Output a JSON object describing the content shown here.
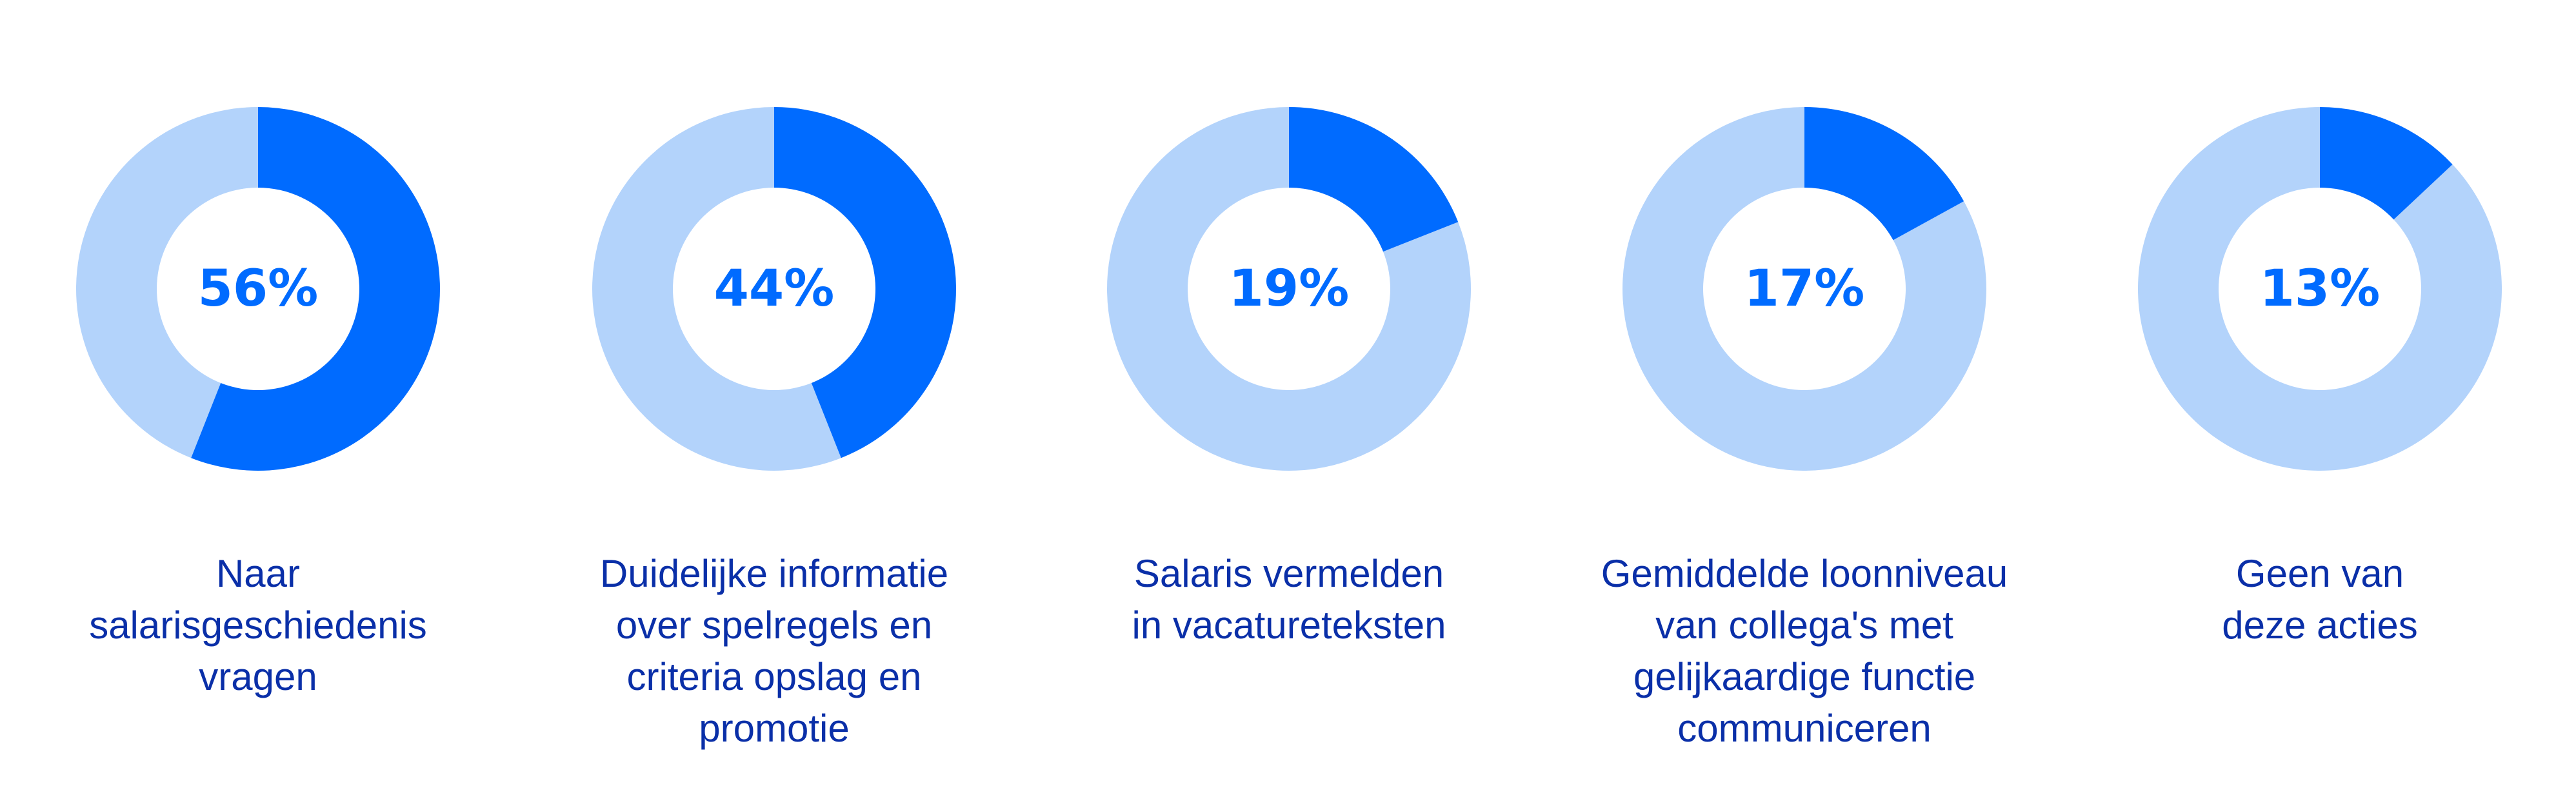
{
  "colors": {
    "primary": "#006bff",
    "secondary": "#b3d3fb",
    "text": "#0a2fa8"
  },
  "chart_data": [
    {
      "type": "pie",
      "title": "",
      "value": 56,
      "value_label": "56%",
      "label_lines": [
        "Naar",
        "salarisgeschiedenis",
        "vragen"
      ]
    },
    {
      "type": "pie",
      "title": "",
      "value": 44,
      "value_label": "44%",
      "label_lines": [
        "Duidelijke informatie",
        "over spelregels en",
        "criteria opslag en",
        "promotie"
      ]
    },
    {
      "type": "pie",
      "title": "",
      "value": 19,
      "value_label": "19%",
      "label_lines": [
        "Salaris vermelden",
        "in vacatureteksten"
      ]
    },
    {
      "type": "pie",
      "title": "",
      "value": 17,
      "value_label": "17%",
      "label_lines": [
        "Gemiddelde loonniveau",
        "van collega's met",
        "gelijkaardige functie",
        "communiceren"
      ]
    },
    {
      "type": "pie",
      "title": "",
      "value": 13,
      "value_label": "13%",
      "label_lines": [
        "Geen van",
        "deze acties"
      ]
    }
  ]
}
